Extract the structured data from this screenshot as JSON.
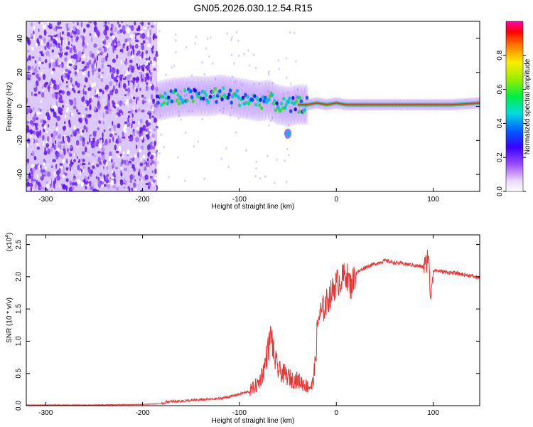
{
  "title": "GN05.2026.030.12.54.R15",
  "colors": {
    "line": "#ee3333",
    "axis": "#000000"
  },
  "chart_data": [
    {
      "type": "heatmap",
      "xlabel": "Height of straight line (km)",
      "ylabel": "Frequency (Hz)",
      "xlim": [
        -320,
        148
      ],
      "ylim": [
        -50,
        50
      ],
      "xticks": [
        "-300",
        "-200",
        "-100",
        "0",
        "100"
      ],
      "xtick_values": [
        -300,
        -200,
        -100,
        0,
        100
      ],
      "yticks": [
        "-40",
        "-20",
        "0",
        "20",
        "40"
      ],
      "ytick_values": [
        -40,
        -20,
        0,
        20,
        40
      ],
      "noise_region_x": [
        -320,
        -185
      ],
      "signal_track": {
        "x": [
          -185,
          -170,
          -150,
          -130,
          -120,
          -110,
          -100,
          -90,
          -80,
          -70,
          -60,
          -50,
          -40,
          -30,
          -20,
          -10,
          0,
          10,
          30,
          60,
          90,
          120,
          148
        ],
        "y": [
          3,
          5,
          6,
          6,
          7,
          6,
          5,
          4,
          3,
          4,
          1,
          0,
          1,
          1,
          2,
          1,
          2,
          1,
          1,
          1,
          1,
          1,
          2
        ]
      },
      "isolated_feature": {
        "x": -50,
        "y": -16
      },
      "colorbar": {
        "label": "Normalized spectral amplitude",
        "ticks": [
          "0.0",
          "0.2",
          "0.4",
          "0.6",
          "0.8"
        ],
        "tick_values": [
          0.0,
          0.2,
          0.4,
          0.6,
          0.8
        ],
        "range": [
          0,
          1
        ]
      }
    },
    {
      "type": "line",
      "xlabel": "Height of straight line (km)",
      "ylabel": "SNR (10 * v/v)",
      "scale_label": "(x10",
      "scale_exp": "4",
      "scale_close": ")",
      "xlim": [
        -320,
        148
      ],
      "ylim": [
        0,
        2.65
      ],
      "xticks": [
        "-300",
        "-200",
        "-100",
        "0",
        "100"
      ],
      "xtick_values": [
        -300,
        -200,
        -100,
        0,
        100
      ],
      "yticks": [
        "0.0",
        "0.5",
        "1.0",
        "1.5",
        "2.0",
        "2.5"
      ],
      "ytick_values": [
        0.0,
        0.5,
        1.0,
        1.5,
        2.0,
        2.5
      ],
      "series": [
        {
          "name": "SNR",
          "x": [
            -320,
            -250,
            -200,
            -180,
            -175,
            -160,
            -140,
            -120,
            -110,
            -100,
            -90,
            -80,
            -75,
            -70,
            -67,
            -65,
            -60,
            -55,
            -50,
            -45,
            -40,
            -35,
            -30,
            -25,
            -22,
            -20,
            -18,
            -15,
            -10,
            -5,
            0,
            5,
            10,
            15,
            20,
            25,
            30,
            40,
            50,
            60,
            70,
            80,
            90,
            93,
            95,
            97,
            100,
            110,
            120,
            130,
            140,
            148
          ],
          "y": [
            0.01,
            0.01,
            0.02,
            0.03,
            0.06,
            0.07,
            0.09,
            0.11,
            0.14,
            0.18,
            0.22,
            0.35,
            0.55,
            0.9,
            1.15,
            0.8,
            0.55,
            0.5,
            0.45,
            0.4,
            0.4,
            0.35,
            0.3,
            0.3,
            0.6,
            1.1,
            1.4,
            1.45,
            1.6,
            1.75,
            1.9,
            1.95,
            2.05,
            1.85,
            2.05,
            2.1,
            2.15,
            2.2,
            2.25,
            2.22,
            2.2,
            2.18,
            2.15,
            2.2,
            2.4,
            1.7,
            2.1,
            2.08,
            2.06,
            2.04,
            2.01,
            1.98
          ]
        }
      ]
    }
  ]
}
